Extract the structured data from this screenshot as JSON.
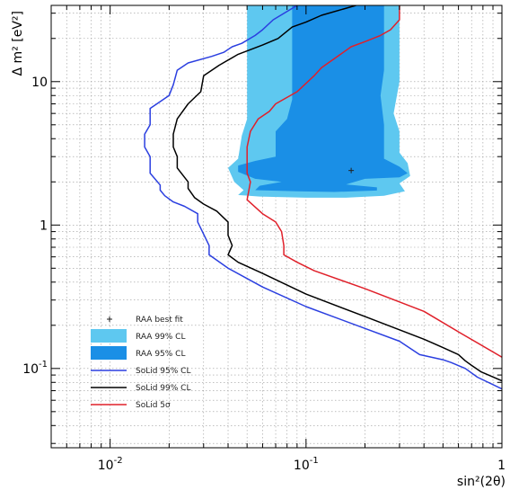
{
  "chart_data": {
    "type": "line",
    "xlabel": "sin²(2θ)",
    "ylabel": "Δ m² [eV²]",
    "xscale": "log",
    "yscale": "log",
    "xlim": [
      0.005,
      1
    ],
    "ylim": [
      0.028,
      34
    ],
    "grid": true,
    "legend_placement": "bottom-left",
    "x_ticks": [
      {
        "value": 0.01,
        "base": "10",
        "exp": "-2"
      },
      {
        "value": 0.1,
        "base": "10",
        "exp": "-1"
      },
      {
        "value": 1,
        "base": "1",
        "exp": ""
      }
    ],
    "y_ticks": [
      {
        "value": 0.1,
        "base": "10",
        "exp": "-1"
      },
      {
        "value": 1,
        "base": "1",
        "exp": ""
      },
      {
        "value": 10,
        "base": "10",
        "exp": ""
      }
    ],
    "colors": {
      "raa99": "#5ec8f0",
      "raa95": "#1a8fe6",
      "solid95": "#2b3fe0",
      "solid99": "#000000",
      "solid5s": "#e0202a",
      "bestfit": "#222222"
    },
    "bestfit": {
      "x": 0.17,
      "y": 2.4
    },
    "raa99_region": [
      [
        0.05,
        34
      ],
      [
        0.05,
        15
      ],
      [
        0.05,
        9
      ],
      [
        0.05,
        5.5
      ],
      [
        0.047,
        4.2
      ],
      [
        0.045,
        2.9
      ],
      [
        0.04,
        2.5
      ],
      [
        0.043,
        2.0
      ],
      [
        0.048,
        1.75
      ],
      [
        0.045,
        1.62
      ],
      [
        0.058,
        1.58
      ],
      [
        0.1,
        1.55
      ],
      [
        0.16,
        1.55
      ],
      [
        0.25,
        1.6
      ],
      [
        0.32,
        1.72
      ],
      [
        0.3,
        1.95
      ],
      [
        0.34,
        2.2
      ],
      [
        0.33,
        2.7
      ],
      [
        0.3,
        3.2
      ],
      [
        0.3,
        4.5
      ],
      [
        0.28,
        6
      ],
      [
        0.3,
        10
      ],
      [
        0.3,
        34
      ]
    ],
    "raa95_region": [
      [
        0.085,
        34
      ],
      [
        0.085,
        15
      ],
      [
        0.085,
        7.5
      ],
      [
        0.08,
        5.5
      ],
      [
        0.07,
        4.5
      ],
      [
        0.07,
        3.0
      ],
      [
        0.055,
        2.8
      ],
      [
        0.045,
        2.6
      ],
      [
        0.045,
        2.35
      ],
      [
        0.055,
        2.1
      ],
      [
        0.075,
        2.0
      ],
      [
        0.058,
        1.88
      ],
      [
        0.055,
        1.75
      ],
      [
        0.09,
        1.72
      ],
      [
        0.14,
        1.7
      ],
      [
        0.23,
        1.74
      ],
      [
        0.23,
        1.83
      ],
      [
        0.16,
        1.92
      ],
      [
        0.2,
        2.1
      ],
      [
        0.3,
        2.15
      ],
      [
        0.33,
        2.3
      ],
      [
        0.3,
        2.55
      ],
      [
        0.25,
        2.9
      ],
      [
        0.25,
        5
      ],
      [
        0.24,
        8
      ],
      [
        0.25,
        12
      ],
      [
        0.25,
        34
      ]
    ],
    "series": [
      {
        "key": "solid95",
        "name": "SoLid 95% CL",
        "points": [
          [
            0.09,
            34
          ],
          [
            0.068,
            27
          ],
          [
            0.06,
            23
          ],
          [
            0.055,
            21
          ],
          [
            0.047,
            18.5
          ],
          [
            0.042,
            17.5
          ],
          [
            0.038,
            16
          ],
          [
            0.033,
            15
          ],
          [
            0.025,
            13.5
          ],
          [
            0.022,
            12
          ],
          [
            0.021,
            9.5
          ],
          [
            0.02,
            8
          ],
          [
            0.016,
            6.5
          ],
          [
            0.016,
            5
          ],
          [
            0.015,
            4.3
          ],
          [
            0.015,
            3.5
          ],
          [
            0.016,
            3.0
          ],
          [
            0.016,
            2.3
          ],
          [
            0.018,
            1.9
          ],
          [
            0.018,
            1.75
          ],
          [
            0.019,
            1.6
          ],
          [
            0.021,
            1.45
          ],
          [
            0.024,
            1.35
          ],
          [
            0.028,
            1.2
          ],
          [
            0.028,
            1.05
          ],
          [
            0.032,
            0.72
          ],
          [
            0.032,
            0.62
          ],
          [
            0.04,
            0.5
          ],
          [
            0.06,
            0.37
          ],
          [
            0.1,
            0.27
          ],
          [
            0.2,
            0.19
          ],
          [
            0.3,
            0.155
          ],
          [
            0.38,
            0.125
          ],
          [
            0.5,
            0.115
          ],
          [
            0.55,
            0.11
          ],
          [
            0.65,
            0.1
          ],
          [
            0.75,
            0.087
          ],
          [
            1,
            0.072
          ]
        ]
      },
      {
        "key": "solid99",
        "name": "SoLid 99% CL",
        "points": [
          [
            0.18,
            34
          ],
          [
            0.12,
            29
          ],
          [
            0.1,
            26
          ],
          [
            0.085,
            24
          ],
          [
            0.072,
            20
          ],
          [
            0.06,
            18
          ],
          [
            0.045,
            15.5
          ],
          [
            0.036,
            13
          ],
          [
            0.03,
            11
          ],
          [
            0.029,
            8.5
          ],
          [
            0.025,
            7
          ],
          [
            0.022,
            5.5
          ],
          [
            0.021,
            4.3
          ],
          [
            0.021,
            3.5
          ],
          [
            0.022,
            3.0
          ],
          [
            0.022,
            2.5
          ],
          [
            0.025,
            2.0
          ],
          [
            0.025,
            1.8
          ],
          [
            0.027,
            1.55
          ],
          [
            0.03,
            1.4
          ],
          [
            0.035,
            1.25
          ],
          [
            0.04,
            1.05
          ],
          [
            0.04,
            0.85
          ],
          [
            0.042,
            0.72
          ],
          [
            0.04,
            0.62
          ],
          [
            0.045,
            0.55
          ],
          [
            0.06,
            0.46
          ],
          [
            0.1,
            0.33
          ],
          [
            0.2,
            0.23
          ],
          [
            0.4,
            0.16
          ],
          [
            0.5,
            0.14
          ],
          [
            0.6,
            0.125
          ],
          [
            0.65,
            0.113
          ],
          [
            0.7,
            0.105
          ],
          [
            0.78,
            0.095
          ],
          [
            1,
            0.082
          ]
        ]
      },
      {
        "key": "solid5s",
        "name": "SoLid 5σ",
        "points": [
          [
            0.3,
            34
          ],
          [
            0.3,
            27
          ],
          [
            0.27,
            23
          ],
          [
            0.24,
            21
          ],
          [
            0.2,
            19
          ],
          [
            0.17,
            17.5
          ],
          [
            0.14,
            14.5
          ],
          [
            0.12,
            12.5
          ],
          [
            0.11,
            11
          ],
          [
            0.09,
            8.5
          ],
          [
            0.07,
            7
          ],
          [
            0.065,
            6.2
          ],
          [
            0.057,
            5.5
          ],
          [
            0.052,
            4.5
          ],
          [
            0.05,
            3.5
          ],
          [
            0.05,
            2.8
          ],
          [
            0.05,
            2.3
          ],
          [
            0.052,
            2.0
          ],
          [
            0.05,
            1.5
          ],
          [
            0.06,
            1.2
          ],
          [
            0.07,
            1.05
          ],
          [
            0.075,
            0.9
          ],
          [
            0.077,
            0.72
          ],
          [
            0.077,
            0.62
          ],
          [
            0.09,
            0.55
          ],
          [
            0.11,
            0.48
          ],
          [
            0.2,
            0.36
          ],
          [
            0.4,
            0.25
          ],
          [
            0.6,
            0.18
          ],
          [
            1,
            0.12
          ]
        ]
      }
    ],
    "legend": [
      {
        "key": "bestfit",
        "kind": "marker",
        "label": "RAA best fit"
      },
      {
        "key": "raa99",
        "kind": "box",
        "label": "RAA 99% CL"
      },
      {
        "key": "raa95",
        "kind": "box",
        "label": "RAA 95% CL"
      },
      {
        "key": "solid95",
        "kind": "line",
        "label": "SoLid 95% CL"
      },
      {
        "key": "solid99",
        "kind": "line",
        "label": "SoLid 99% CL"
      },
      {
        "key": "solid5s",
        "kind": "line",
        "label": "SoLid 5σ"
      }
    ]
  }
}
